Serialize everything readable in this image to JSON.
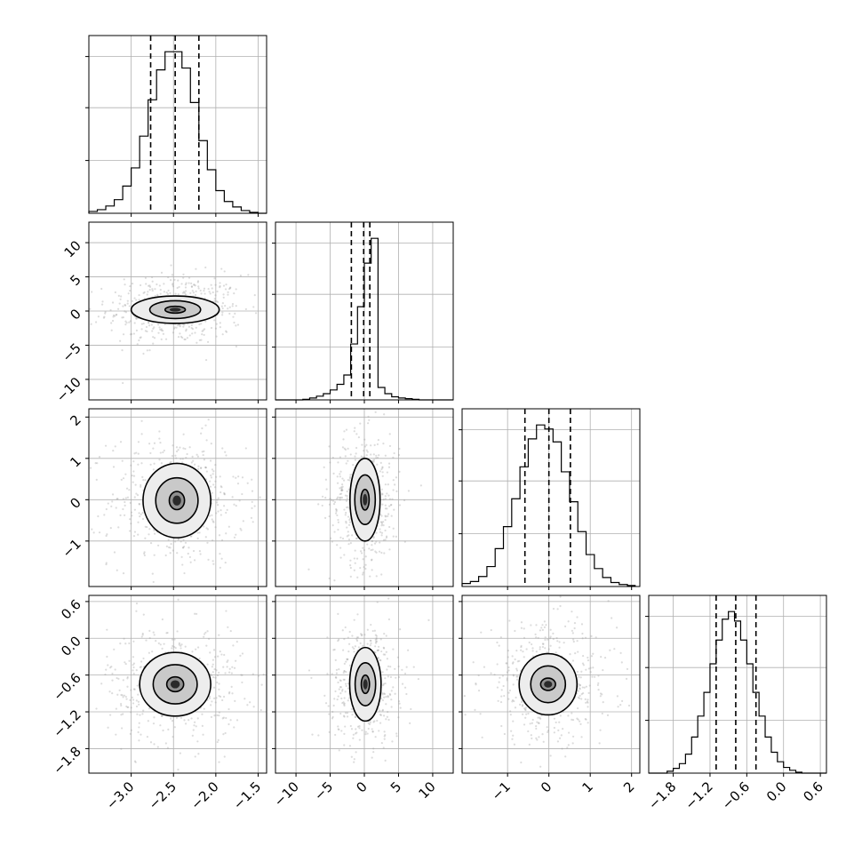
{
  "chart_data": {
    "type": "corner",
    "grid": true,
    "parameters": [
      {
        "range": [
          -3.5,
          -1.4
        ],
        "ticks": [
          -3.0,
          -2.5,
          -2.0,
          -1.5
        ],
        "tick_labels": [
          "−3.0",
          "−2.5",
          "−2.0",
          "−1.5"
        ],
        "quantiles": [
          -2.77,
          -2.48,
          -2.2
        ],
        "histogram": {
          "bin_edges": [
            -3.5,
            -3.4,
            -3.3,
            -3.2,
            -3.1,
            -3.0,
            -2.9,
            -2.8,
            -2.7,
            -2.6,
            -2.5,
            -2.4,
            -2.3,
            -2.2,
            -2.1,
            -2.0,
            -1.9,
            -1.8,
            -1.7,
            -1.6,
            -1.5,
            -1.4
          ],
          "counts": [
            2,
            4,
            8,
            15,
            30,
            50,
            85,
            125,
            158,
            178,
            178,
            160,
            122,
            80,
            48,
            25,
            13,
            7,
            3,
            1,
            0
          ]
        }
      },
      {
        "range": [
          -13,
          13
        ],
        "ticks": [
          -10,
          -5,
          0,
          5,
          10
        ],
        "tick_labels": [
          "−10",
          "−5",
          "0",
          "5",
          "10"
        ],
        "quantiles": [
          -1.9,
          -0.1,
          0.8
        ],
        "histogram": {
          "bin_edges": [
            -13,
            -12,
            -11,
            -10,
            -9,
            -8,
            -7,
            -6,
            -5,
            -4,
            -3,
            -2,
            -1,
            0,
            1,
            2,
            3,
            4,
            5,
            6,
            7,
            8,
            9,
            10,
            11,
            12,
            13
          ],
          "counts": [
            0,
            0,
            0,
            0,
            1,
            3,
            6,
            10,
            16,
            25,
            40,
            90,
            150,
            220,
            260,
            20,
            10,
            5,
            3,
            2,
            1,
            0,
            0,
            0,
            0,
            0
          ]
        }
      },
      {
        "range": [
          -2.1,
          2.2
        ],
        "ticks": [
          -1,
          0,
          1,
          2
        ],
        "tick_labels": [
          "−1",
          "0",
          "1",
          "2"
        ],
        "quantiles": [
          -0.58,
          0.0,
          0.52
        ],
        "histogram": {
          "bin_edges": [
            -2.1,
            -1.9,
            -1.7,
            -1.5,
            -1.3,
            -1.1,
            -0.9,
            -0.7,
            -0.5,
            -0.3,
            -0.1,
            0.1,
            0.3,
            0.5,
            0.7,
            0.9,
            1.1,
            1.3,
            1.5,
            1.7,
            1.9,
            2.1
          ],
          "counts": [
            3,
            5,
            10,
            20,
            38,
            60,
            88,
            120,
            148,
            162,
            158,
            145,
            115,
            85,
            55,
            32,
            18,
            9,
            4,
            2,
            1
          ]
        }
      },
      {
        "range": [
          -2.2,
          0.7
        ],
        "ticks": [
          -1.8,
          -1.2,
          -0.6,
          0.0,
          0.6
        ],
        "tick_labels": [
          "−1.8",
          "−1.2",
          "−0.6",
          "0.0",
          "0.6"
        ],
        "quantiles": [
          -1.1,
          -0.78,
          -0.45
        ],
        "histogram": {
          "bin_edges": [
            -2.2,
            -2.1,
            -2.0,
            -1.9,
            -1.8,
            -1.7,
            -1.6,
            -1.5,
            -1.4,
            -1.3,
            -1.2,
            -1.1,
            -1.0,
            -0.9,
            -0.8,
            -0.7,
            -0.6,
            -0.5,
            -0.4,
            -0.3,
            -0.2,
            -0.1,
            0.0,
            0.1,
            0.2,
            0.3,
            0.4,
            0.5,
            0.6,
            0.7
          ],
          "counts": [
            0,
            0,
            0,
            2,
            5,
            10,
            20,
            38,
            60,
            85,
            115,
            140,
            162,
            170,
            160,
            140,
            115,
            85,
            60,
            38,
            22,
            12,
            6,
            3,
            1,
            0,
            0,
            0,
            0
          ]
        }
      }
    ],
    "pairs": [
      {
        "x": 0,
        "y": 1,
        "center": [
          -2.48,
          0.2
        ],
        "spread": [
          0.25,
          1.6
        ],
        "contour_levels": [
          [
            0.12,
            0.5
          ],
          [
            0.3,
            1.3
          ],
          [
            0.52,
            2.0
          ]
        ]
      },
      {
        "x": 0,
        "y": 2,
        "center": [
          -2.46,
          -0.02
        ],
        "spread": [
          0.25,
          0.5
        ],
        "contour_levels": [
          [
            0.09,
            0.22
          ],
          [
            0.25,
            0.55
          ],
          [
            0.4,
            0.9
          ]
        ]
      },
      {
        "x": 1,
        "y": 2,
        "center": [
          0.1,
          0.0
        ],
        "spread": [
          1.6,
          0.5
        ],
        "contour_levels": [
          [
            0.6,
            0.25
          ],
          [
            1.5,
            0.6
          ],
          [
            2.2,
            1.0
          ]
        ]
      },
      {
        "x": 0,
        "y": 3,
        "center": [
          -2.48,
          -0.75
        ],
        "spread": [
          0.25,
          0.3
        ],
        "contour_levels": [
          [
            0.1,
            0.12
          ],
          [
            0.26,
            0.32
          ],
          [
            0.42,
            0.52
          ]
        ]
      },
      {
        "x": 1,
        "y": 3,
        "center": [
          0.15,
          -0.75
        ],
        "spread": [
          1.6,
          0.3
        ],
        "contour_levels": [
          [
            0.6,
            0.15
          ],
          [
            1.5,
            0.35
          ],
          [
            2.3,
            0.6
          ]
        ]
      },
      {
        "x": 2,
        "y": 3,
        "center": [
          -0.02,
          -0.75
        ],
        "spread": [
          0.5,
          0.3
        ],
        "contour_levels": [
          [
            0.18,
            0.1
          ],
          [
            0.42,
            0.3
          ],
          [
            0.7,
            0.5
          ]
        ]
      }
    ]
  }
}
